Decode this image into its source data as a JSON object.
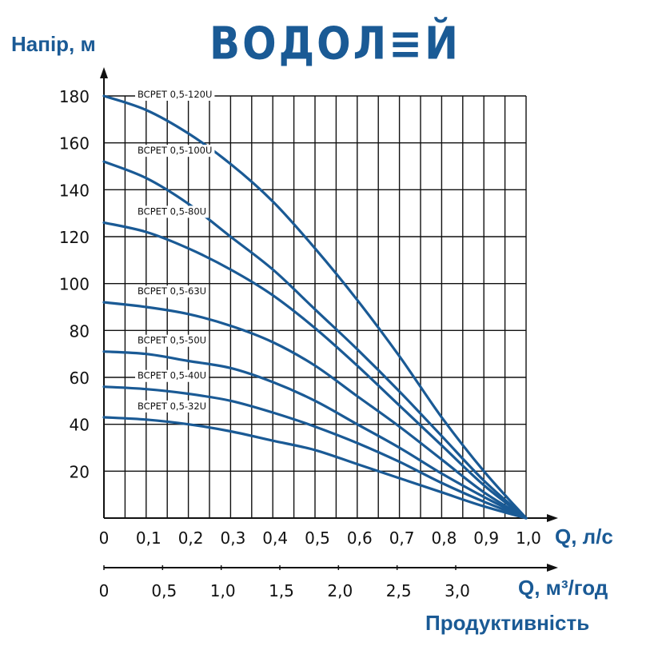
{
  "brand": "ВОДОЛ≡Й",
  "chart_data": {
    "type": "line",
    "ylabel": "Напір, м",
    "xlabel": "Q, л/с",
    "xlabel_secondary": "Q, м³/год",
    "subtitle": "Продуктивність",
    "xlim": [
      0,
      1.0
    ],
    "ylim": [
      0,
      180
    ],
    "x_ticks": [
      "0",
      "0,1",
      "0,2",
      "0,3",
      "0,4",
      "0,5",
      "0,6",
      "0,7",
      "0,8",
      "0,9",
      "1,0"
    ],
    "y_ticks": [
      "20",
      "40",
      "60",
      "80",
      "100",
      "120",
      "140",
      "160",
      "180"
    ],
    "secondary_x_ticks": [
      "0",
      "0,5",
      "1,0",
      "1,5",
      "2,0",
      "2,5",
      "3,0"
    ],
    "secondary_x_tick_values": [
      0,
      0.5,
      1.0,
      1.5,
      2.0,
      2.5,
      3.0
    ],
    "grid": true,
    "x": [
      0,
      0.1,
      0.2,
      0.3,
      0.4,
      0.5,
      0.6,
      0.7,
      0.8,
      0.9,
      1.0
    ],
    "series": [
      {
        "name": "BCPET 0,5-120U",
        "values": [
          180,
          174,
          164,
          151,
          135,
          115,
          93,
          69,
          43,
          20,
          0
        ]
      },
      {
        "name": "BCPET 0,5-100U",
        "values": [
          152,
          145,
          134,
          120,
          106,
          89,
          72,
          54,
          35,
          16,
          0
        ]
      },
      {
        "name": "BCPET 0,5-80U",
        "values": [
          126,
          122,
          115,
          106,
          95,
          81,
          65,
          48,
          31,
          14,
          0
        ]
      },
      {
        "name": "BCPET 0,5-63U",
        "values": [
          92,
          90,
          87,
          82,
          75,
          65,
          52,
          39,
          25,
          11,
          0
        ]
      },
      {
        "name": "BCPET 0,5-50U",
        "values": [
          71,
          70,
          67,
          64,
          58,
          50,
          40,
          30,
          19,
          9,
          0
        ]
      },
      {
        "name": "BCPET 0,5-40U",
        "values": [
          56,
          55,
          53,
          50,
          45,
          39,
          32,
          24,
          15,
          7,
          0
        ]
      },
      {
        "name": "BCPET 0,5-32U",
        "values": [
          43,
          42,
          40,
          37,
          33,
          29,
          23,
          17,
          11,
          5,
          0
        ]
      }
    ]
  },
  "colors": {
    "curve": "#1a5a95",
    "text_blue": "#1a5a95",
    "grid": "#111111"
  }
}
